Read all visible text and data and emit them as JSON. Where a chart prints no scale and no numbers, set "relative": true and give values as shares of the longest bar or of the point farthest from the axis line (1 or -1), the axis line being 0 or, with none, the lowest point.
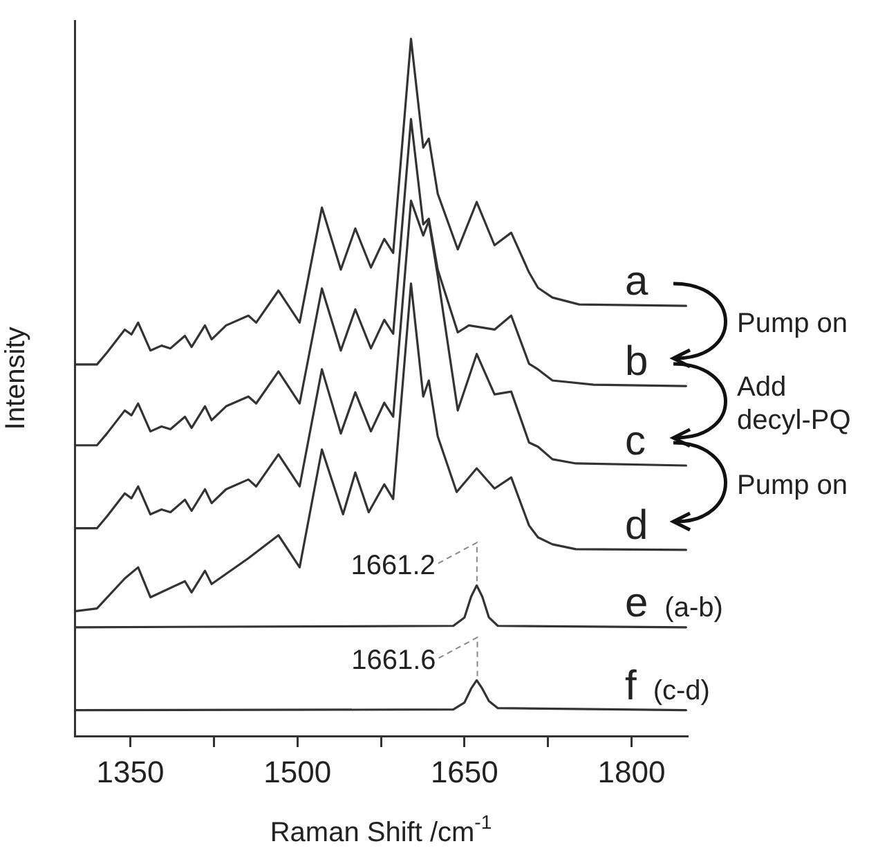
{
  "chart_data": {
    "type": "line",
    "xlabel": "Raman Shift /cm$^{-1}$",
    "ylabel": "Intensity",
    "relative": true,
    "xlim": [
      1300,
      1850
    ],
    "xticks": [
      1350,
      {
        "value": 1425,
        "label": null
      },
      1500,
      {
        "value": 1575,
        "label": null
      },
      1650,
      {
        "value": 1725,
        "label": null
      },
      1800
    ],
    "grid": false,
    "legend": false,
    "marker": "none",
    "line_style": "solid",
    "series": [
      {
        "name": "a",
        "color": "#333333",
        "x": [
          1300,
          1320,
          1329,
          1345,
          1351,
          1357,
          1368,
          1378,
          1386,
          1399,
          1405,
          1417,
          1423,
          1436,
          1456,
          1463,
          1483,
          1502,
          1522,
          1539,
          1552,
          1566,
          1578,
          1586,
          1602,
          1613,
          1618,
          1626,
          1644,
          1661,
          1677,
          1692,
          1708,
          1716,
          1729,
          1753,
          1849
        ],
        "values": [
          0.533,
          0.533,
          0.55,
          0.583,
          0.576,
          0.593,
          0.553,
          0.56,
          0.556,
          0.574,
          0.558,
          0.589,
          0.569,
          0.589,
          0.603,
          0.593,
          0.639,
          0.593,
          0.758,
          0.669,
          0.728,
          0.672,
          0.713,
          0.693,
          1.0,
          0.844,
          0.857,
          0.778,
          0.698,
          0.766,
          0.704,
          0.722,
          0.665,
          0.643,
          0.629,
          0.619,
          0.617
        ]
      },
      {
        "name": "b",
        "color": "#333333",
        "x": [
          1300,
          1320,
          1329,
          1345,
          1351,
          1357,
          1368,
          1378,
          1386,
          1399,
          1405,
          1417,
          1423,
          1436,
          1456,
          1463,
          1483,
          1502,
          1522,
          1539,
          1552,
          1566,
          1578,
          1586,
          1602,
          1613,
          1618,
          1626,
          1644,
          1654,
          1677,
          1692,
          1708,
          1716,
          1729,
          1766,
          1849
        ],
        "values": [
          0.417,
          0.417,
          0.434,
          0.467,
          0.46,
          0.477,
          0.437,
          0.444,
          0.44,
          0.458,
          0.442,
          0.473,
          0.453,
          0.473,
          0.487,
          0.477,
          0.523,
          0.477,
          0.642,
          0.553,
          0.612,
          0.556,
          0.597,
          0.577,
          0.885,
          0.734,
          0.742,
          0.669,
          0.579,
          0.589,
          0.583,
          0.603,
          0.534,
          0.526,
          0.51,
          0.504,
          0.502
        ]
      },
      {
        "name": "c",
        "color": "#333333",
        "x": [
          1300,
          1320,
          1329,
          1345,
          1351,
          1357,
          1368,
          1378,
          1386,
          1399,
          1405,
          1417,
          1423,
          1436,
          1456,
          1463,
          1483,
          1502,
          1522,
          1539,
          1552,
          1566,
          1578,
          1586,
          1602,
          1613,
          1618,
          1626,
          1644,
          1661,
          1677,
          1692,
          1708,
          1716,
          1729,
          1750,
          1849
        ],
        "values": [
          0.298,
          0.298,
          0.315,
          0.348,
          0.341,
          0.358,
          0.318,
          0.325,
          0.321,
          0.339,
          0.323,
          0.354,
          0.334,
          0.354,
          0.368,
          0.358,
          0.404,
          0.358,
          0.526,
          0.434,
          0.493,
          0.437,
          0.478,
          0.458,
          0.768,
          0.718,
          0.739,
          0.66,
          0.467,
          0.548,
          0.49,
          0.494,
          0.421,
          0.415,
          0.397,
          0.391,
          0.388
        ]
      },
      {
        "name": "d",
        "color": "#333333",
        "x": [
          1300,
          1320,
          1345,
          1357,
          1368,
          1399,
          1405,
          1417,
          1423,
          1456,
          1483,
          1502,
          1522,
          1541,
          1552,
          1564,
          1578,
          1586,
          1602,
          1613,
          1618,
          1626,
          1643,
          1661,
          1677,
          1692,
          1708,
          1716,
          1729,
          1750,
          1849
        ],
        "values": [
          0.179,
          0.183,
          0.226,
          0.242,
          0.199,
          0.222,
          0.206,
          0.237,
          0.218,
          0.255,
          0.288,
          0.242,
          0.411,
          0.318,
          0.378,
          0.321,
          0.361,
          0.34,
          0.649,
          0.487,
          0.51,
          0.43,
          0.35,
          0.384,
          0.355,
          0.371,
          0.302,
          0.285,
          0.275,
          0.268,
          0.267
        ]
      },
      {
        "name": "e",
        "color": "#333333",
        "x": [
          1300,
          1640,
          1650,
          1656,
          1661,
          1666,
          1672,
          1680,
          1849
        ],
        "values": [
          0.156,
          0.158,
          0.17,
          0.2,
          0.216,
          0.2,
          0.17,
          0.158,
          0.156
        ]
      },
      {
        "name": "f",
        "color": "#333333",
        "x": [
          1300,
          1640,
          1650,
          1656,
          1661,
          1666,
          1672,
          1680,
          1849
        ],
        "values": [
          0.037,
          0.038,
          0.048,
          0.068,
          0.08,
          0.068,
          0.05,
          0.04,
          0.037
        ]
      }
    ],
    "annotations": [
      "Pump on",
      "Add decyl-PQ",
      "Pump on",
      "(a-b)",
      "(c-d)",
      {
        "text": "1661.2",
        "x": 1661.2,
        "y": 0.216
      },
      {
        "text": "1661.6",
        "x": 1661.6,
        "y": 0.08
      }
    ]
  }
}
